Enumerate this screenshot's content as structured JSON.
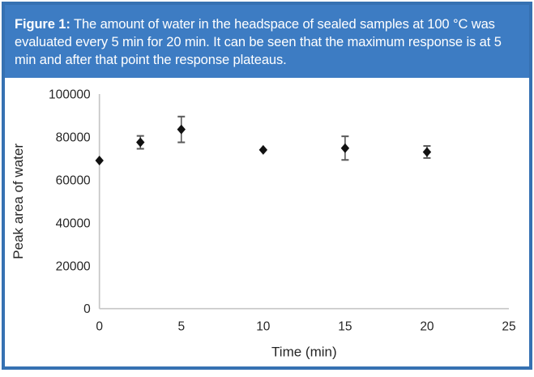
{
  "caption": {
    "label": "Figure 1:",
    "text": " The amount of water in the headspace of sealed samples at 100 °C was evaluated every 5 min for 20 min. It can be seen that the maximum response is at 5 min and after that point the response plateaus."
  },
  "colors": {
    "header_bg": "#3d7cc3",
    "border_blue": "#3671b2",
    "caption_text": "#ffffff",
    "axis_line": "#c6c6c6",
    "tick_text": "#262626",
    "axis_title_text": "#262626",
    "marker": "#111111",
    "error_bar": "#595959"
  },
  "chart_data": {
    "type": "scatter",
    "title": "",
    "xlabel": "Time (min)",
    "ylabel": "Peak area of water",
    "xlim": [
      0,
      25
    ],
    "ylim": [
      0,
      100000
    ],
    "x_ticks": [
      0,
      5,
      10,
      15,
      20,
      25
    ],
    "y_ticks": [
      0,
      20000,
      40000,
      60000,
      80000,
      100000
    ],
    "grid": false,
    "legend": false,
    "marker": "diamond",
    "points": [
      {
        "x": 0,
        "y": 69000,
        "err": 0
      },
      {
        "x": 2.5,
        "y": 77500,
        "err": 3000
      },
      {
        "x": 5,
        "y": 83500,
        "err": 6000
      },
      {
        "x": 10,
        "y": 74000,
        "err": 0
      },
      {
        "x": 15,
        "y": 74800,
        "err": 5500
      },
      {
        "x": 20,
        "y": 73000,
        "err": 2800
      }
    ]
  }
}
